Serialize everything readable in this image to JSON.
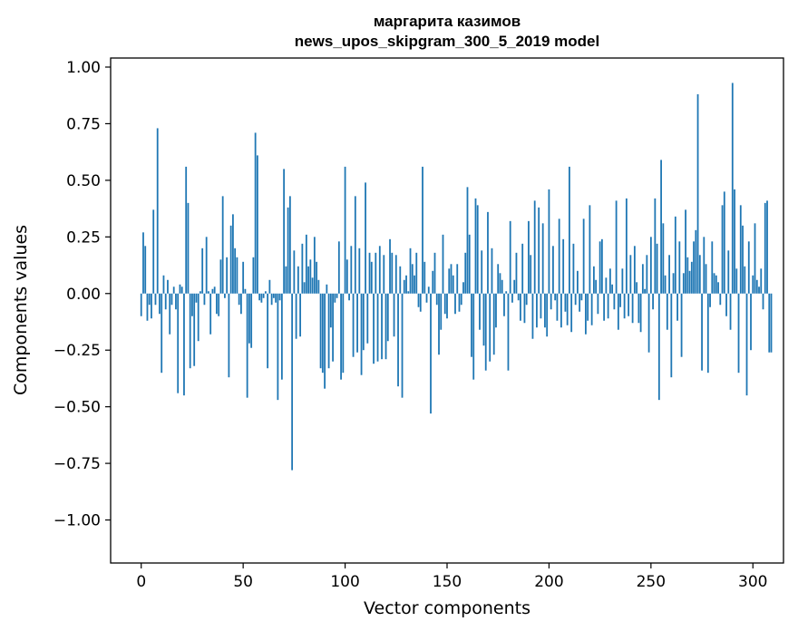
{
  "chart_data": {
    "type": "bar",
    "title_lines": [
      "маргарита казимов",
      "news_upos_skipgram_300_5_2019 model"
    ],
    "xlabel": "Vector components",
    "ylabel": "Components values",
    "xlim": [
      -15,
      315
    ],
    "ylim": [
      -1.19,
      1.04
    ],
    "x_ticks": [
      0,
      50,
      100,
      150,
      200,
      250,
      300
    ],
    "x_tick_labels": [
      "0",
      "50",
      "100",
      "150",
      "200",
      "250",
      "300"
    ],
    "y_ticks": [
      1.0,
      0.75,
      0.5,
      0.25,
      0.0,
      -0.25,
      -0.5,
      -0.75,
      -1.0
    ],
    "y_tick_labels": [
      "1.00",
      "0.75",
      "0.50",
      "0.25",
      "0.00",
      "−0.25",
      "−0.50",
      "−0.75",
      "−1.00"
    ],
    "grid": false,
    "bar_color": "#1f77b4",
    "values": [
      -0.1,
      0.27,
      0.21,
      -0.12,
      -0.05,
      -0.11,
      0.37,
      -0.05,
      0.73,
      -0.09,
      -0.35,
      0.08,
      -0.07,
      0.06,
      -0.18,
      -0.05,
      0.03,
      -0.07,
      -0.44,
      0.04,
      0.03,
      -0.45,
      0.56,
      0.4,
      -0.33,
      -0.1,
      -0.32,
      -0.04,
      -0.21,
      0.01,
      0.2,
      -0.05,
      0.25,
      0.01,
      -0.18,
      0.02,
      0.03,
      -0.09,
      -0.1,
      0.15,
      0.43,
      -0.02,
      0.16,
      -0.37,
      0.3,
      0.35,
      0.2,
      0.16,
      -0.05,
      -0.09,
      0.14,
      0.02,
      -0.46,
      -0.22,
      -0.24,
      0.16,
      0.71,
      0.61,
      -0.03,
      -0.04,
      -0.02,
      0.01,
      -0.33,
      0.06,
      -0.05,
      -0.02,
      -0.04,
      -0.47,
      -0.03,
      -0.38,
      0.55,
      0.12,
      0.38,
      0.43,
      -0.78,
      0.19,
      -0.2,
      0.12,
      -0.19,
      0.22,
      0.05,
      0.26,
      0.12,
      0.15,
      0.07,
      0.25,
      0.14,
      0.06,
      -0.33,
      -0.35,
      -0.42,
      0.04,
      -0.33,
      -0.15,
      -0.3,
      -0.04,
      -0.02,
      0.23,
      -0.38,
      -0.35,
      0.56,
      0.15,
      -0.03,
      0.21,
      -0.28,
      0.43,
      -0.26,
      0.2,
      -0.36,
      -0.25,
      0.49,
      -0.22,
      0.18,
      0.14,
      -0.31,
      0.18,
      -0.3,
      0.21,
      -0.29,
      0.17,
      -0.29,
      -0.21,
      0.24,
      0.18,
      -0.19,
      0.17,
      -0.41,
      0.12,
      -0.46,
      0.06,
      0.08,
      0.01,
      0.2,
      0.13,
      0.08,
      0.18,
      -0.06,
      -0.08,
      0.56,
      0.14,
      -0.04,
      0.03,
      -0.53,
      0.1,
      0.18,
      -0.05,
      -0.27,
      -0.16,
      0.26,
      -0.09,
      -0.11,
      0.11,
      0.13,
      0.08,
      -0.09,
      0.13,
      -0.08,
      -0.05,
      0.05,
      0.18,
      0.47,
      0.26,
      -0.28,
      -0.38,
      0.42,
      0.39,
      -0.16,
      0.19,
      -0.23,
      -0.34,
      0.36,
      -0.3,
      0.2,
      -0.27,
      -0.15,
      0.13,
      0.09,
      0.06,
      -0.1,
      0.01,
      -0.34,
      0.32,
      -0.04,
      0.06,
      0.18,
      -0.03,
      -0.12,
      0.22,
      -0.13,
      -0.05,
      0.32,
      0.17,
      -0.2,
      0.41,
      -0.15,
      0.38,
      -0.11,
      0.31,
      -0.15,
      -0.19,
      0.46,
      -0.07,
      0.21,
      -0.03,
      -0.12,
      0.33,
      -0.15,
      0.24,
      -0.08,
      -0.14,
      0.56,
      -0.17,
      0.22,
      -0.05,
      0.1,
      -0.08,
      -0.03,
      0.33,
      -0.18,
      -0.12,
      0.39,
      -0.14,
      0.12,
      0.06,
      -0.09,
      0.23,
      0.24,
      -0.12,
      0.07,
      -0.11,
      0.11,
      0.04,
      -0.07,
      0.41,
      -0.16,
      -0.06,
      0.11,
      -0.11,
      0.42,
      -0.1,
      0.17,
      -0.13,
      0.21,
      0.05,
      -0.13,
      -0.17,
      0.13,
      0.02,
      0.17,
      -0.26,
      0.25,
      -0.07,
      0.42,
      0.22,
      -0.47,
      0.59,
      0.31,
      0.08,
      -0.16,
      0.17,
      -0.37,
      0.09,
      0.34,
      -0.12,
      0.23,
      -0.28,
      0.09,
      0.37,
      0.16,
      0.1,
      0.14,
      0.23,
      0.28,
      0.88,
      0.17,
      -0.34,
      0.25,
      0.13,
      -0.35,
      -0.06,
      0.23,
      0.09,
      0.08,
      0.05,
      -0.05,
      0.39,
      0.45,
      -0.1,
      0.19,
      -0.16,
      0.93,
      0.46,
      0.11,
      -0.35,
      0.39,
      0.3,
      0.12,
      -0.45,
      0.23,
      -0.25,
      0.08,
      0.31,
      0.06,
      0.03,
      0.11,
      -0.07,
      0.4,
      0.41,
      -0.26,
      -0.26
    ]
  }
}
